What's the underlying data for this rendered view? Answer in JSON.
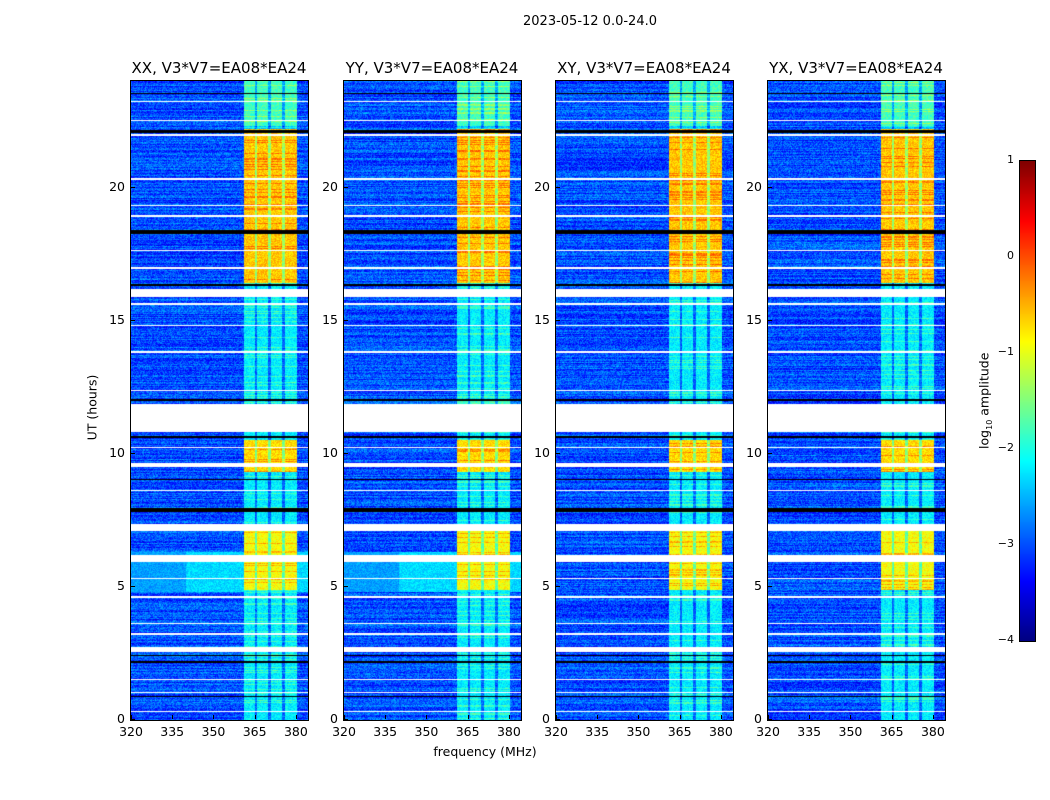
{
  "chart_data": {
    "type": "heatmap",
    "title": "2023-05-12 0.0-24.0",
    "xlabel": "frequency (MHz)",
    "ylabel": "UT (hours)",
    "xlim": [
      320,
      384.4
    ],
    "ylim": [
      0,
      24
    ],
    "xticks": [
      "320",
      "335",
      "350",
      "365",
      "380"
    ],
    "xtick_values": [
      320,
      335,
      350,
      365,
      380
    ],
    "yticks": [
      "0",
      "5",
      "10",
      "15",
      "20"
    ],
    "ytick_values": [
      0,
      5,
      10,
      15,
      20
    ],
    "panels": [
      {
        "title": "XX, V3*V7=EA08*EA24",
        "broadband_boost": true
      },
      {
        "title": "YY, V3*V7=EA08*EA24",
        "broadband_boost": true
      },
      {
        "title": "XY, V3*V7=EA08*EA24",
        "broadband_boost": false
      },
      {
        "title": "YX, V3*V7=EA08*EA24",
        "broadband_boost": false
      }
    ],
    "colorbar": {
      "label": "log10 amplitude",
      "label_main": "log",
      "label_sub": "10",
      "label_tail": " amplitude",
      "range": [
        -4,
        1
      ],
      "ticks": [
        "1",
        "0",
        "−1",
        "−2",
        "−3",
        "−4"
      ],
      "tick_values": [
        1,
        0,
        -1,
        -2,
        -3,
        -4
      ],
      "colormap": "jet"
    },
    "background_level": -3.0,
    "rfi_band_mhz": [
      361,
      380.5
    ],
    "rfi_subband_gaps_mhz": [
      365.5,
      370.5,
      375.5
    ],
    "rfi_active_periods_hours": [
      [
        16.4,
        22.2,
        -0.6
      ],
      [
        9.3,
        10.5,
        -0.7
      ],
      [
        4.9,
        7.2,
        -0.9
      ],
      [
        22.3,
        24,
        -1.8
      ],
      [
        0,
        16.4,
        -2.2
      ]
    ],
    "broadband_periods_hours": [
      [
        4.8,
        6.3,
        -2.3
      ]
    ],
    "flagged_white_hours": [
      [
        23.2,
        23.25
      ],
      [
        22.5,
        22.55
      ],
      [
        21.95,
        22.0
      ],
      [
        20.3,
        20.36
      ],
      [
        19.3,
        19.35
      ],
      [
        18.9,
        18.95
      ],
      [
        17.6,
        17.65
      ],
      [
        16.95,
        17.0
      ],
      [
        15.9,
        16.2
      ],
      [
        15.6,
        15.65
      ],
      [
        14.8,
        14.85
      ],
      [
        13.8,
        13.85
      ],
      [
        12.35,
        12.4
      ],
      [
        10.8,
        11.85
      ],
      [
        10.2,
        10.25
      ],
      [
        9.5,
        9.65
      ],
      [
        8.6,
        8.65
      ],
      [
        7.1,
        7.35
      ],
      [
        5.95,
        6.2
      ],
      [
        5.3,
        5.35
      ],
      [
        4.6,
        4.65
      ],
      [
        3.6,
        3.65
      ],
      [
        3.2,
        3.25
      ],
      [
        2.55,
        2.75
      ],
      [
        1.5,
        1.55
      ],
      [
        1.0,
        1.05
      ],
      [
        0.3,
        0.35
      ]
    ],
    "flagged_black_hours": [
      [
        23.5,
        23.55
      ],
      [
        22.05,
        22.15
      ],
      [
        18.25,
        18.4
      ],
      [
        16.3,
        16.38
      ],
      [
        12.0,
        12.06
      ],
      [
        10.6,
        10.65
      ],
      [
        9.0,
        9.04
      ],
      [
        7.8,
        7.95
      ],
      [
        2.4,
        2.44
      ],
      [
        2.15,
        2.2
      ],
      [
        0.85,
        0.9
      ]
    ]
  }
}
